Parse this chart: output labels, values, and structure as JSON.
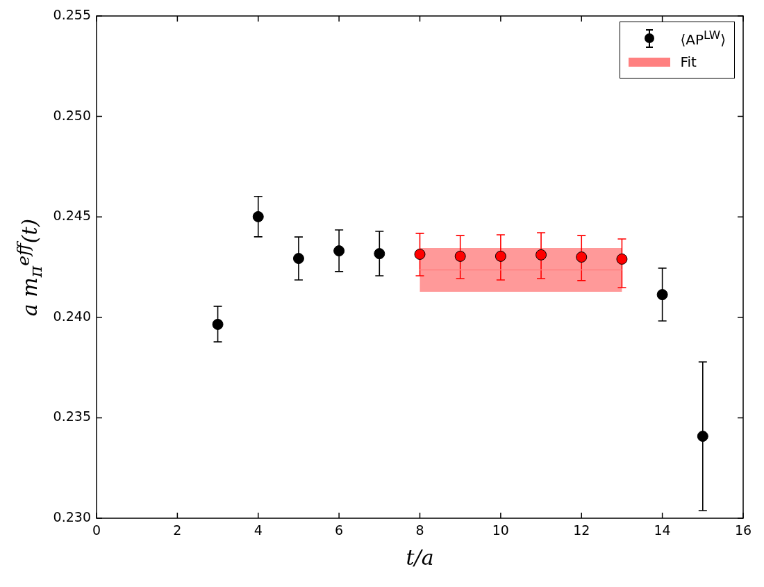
{
  "chart_data": {
    "type": "scatter",
    "xlabel": "t/a",
    "ylabel": "a m$_{π}$$^{eff}$(t)",
    "xlim": [
      0,
      16
    ],
    "xticks": [
      0,
      2,
      4,
      6,
      8,
      10,
      12,
      14,
      16
    ],
    "ylim": [
      0.23,
      0.255
    ],
    "yticks": [
      {
        "value": 0.23,
        "label": "0.230"
      },
      {
        "value": 0.235,
        "label": "0.235"
      },
      {
        "value": 0.24,
        "label": "0.240"
      },
      {
        "value": 0.245,
        "label": "0.245"
      },
      {
        "value": 0.25,
        "label": "0.250"
      },
      {
        "value": 0.255,
        "label": "0.255"
      }
    ],
    "grid": false,
    "legend": "top right",
    "series": [
      {
        "name": "⟨AP$^{LW}$⟩",
        "marker": "circle",
        "color": "#000000",
        "x": [
          3,
          4,
          5,
          6,
          7,
          8,
          9,
          10,
          11,
          12,
          13,
          14,
          15
        ],
        "values": [
          0.23965,
          0.24501,
          0.24293,
          0.24331,
          0.24317,
          0.24314,
          0.24304,
          0.24304,
          0.24311,
          0.243,
          0.2429,
          0.24113,
          0.23408
        ],
        "colors": [
          "#000000",
          "#000000",
          "#000000",
          "#000000",
          "#000000",
          "#ff0000",
          "#ff0000",
          "#ff0000",
          "#ff0000",
          "#ff0000",
          "#ff0000",
          "#000000",
          "#000000"
        ],
        "errors": [
          [
            0.23878,
            0.24055
          ],
          [
            0.24401,
            0.24602
          ],
          [
            0.24186,
            0.244
          ],
          [
            0.24228,
            0.24435
          ],
          [
            0.24207,
            0.24428
          ],
          [
            0.24207,
            0.24418
          ],
          [
            0.24193,
            0.24407
          ],
          [
            0.24186,
            0.24411
          ],
          [
            0.24193,
            0.24421
          ],
          [
            0.24183,
            0.24407
          ],
          [
            0.24148,
            0.2439
          ],
          [
            0.23982,
            0.24245
          ],
          [
            0.23038,
            0.23778
          ]
        ]
      },
      {
        "type": "line",
        "name": "Fit",
        "color": "#ff8080",
        "x": [
          8,
          13
        ],
        "values": [
          0.24236,
          0.24236
        ],
        "lower": [
          0.24127,
          0.24127
        ],
        "upper": [
          0.24345,
          0.24345
        ]
      }
    ]
  }
}
